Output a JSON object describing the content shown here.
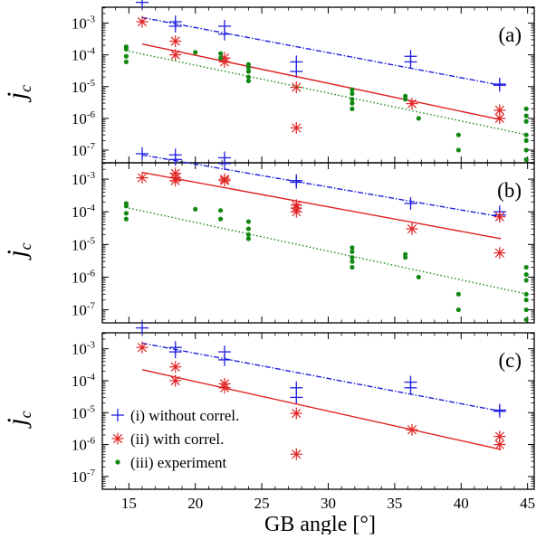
{
  "chart_data": {
    "type": "scatter",
    "xlabel": "GB angle [°]",
    "ylabel_main": "j",
    "ylabel_sub": "c",
    "xlim": [
      13,
      45.5
    ],
    "xticks": [
      15,
      20,
      25,
      30,
      35,
      40,
      45
    ],
    "yscale": "log",
    "ylim_log10": [
      -7.4,
      -2.5
    ],
    "ytick_base": "10",
    "yticks": [
      {
        "value": 0.001,
        "exp": "-3"
      },
      {
        "value": 0.0001,
        "exp": "-4"
      },
      {
        "value": 1e-05,
        "exp": "-5"
      },
      {
        "value": 1e-06,
        "exp": "-6"
      },
      {
        "value": 1e-07,
        "exp": "-7"
      }
    ],
    "legend": {
      "panel": "c",
      "position": "bottom-left",
      "entries": [
        {
          "label": "(i) without correl.",
          "color": "#1f1fdf",
          "marker": "plus"
        },
        {
          "label": "(ii) with correl.",
          "color": "#e02020",
          "marker": "star"
        },
        {
          "label": "(iii) experiment",
          "color": "#118811",
          "marker": "dot"
        }
      ]
    },
    "colors": {
      "series_i": "#1f1fdf",
      "series_ii": "#e02020",
      "series_iii": "#118811"
    },
    "panels": [
      {
        "label": "(a)",
        "series": [
          {
            "name": "(i) without correl.",
            "marker": "plus",
            "color": "#1f1fdf",
            "points": [
              [
                16,
                0.0045
              ],
              [
                18.5,
                0.0011
              ],
              [
                18.5,
                0.0008
              ],
              [
                22.2,
                0.0008
              ],
              [
                22.2,
                0.00045
              ],
              [
                27.6,
                6e-05
              ],
              [
                27.6,
                3e-05
              ],
              [
                36.2,
                9e-05
              ],
              [
                36.2,
                6e-05
              ],
              [
                42.9,
                1.1e-05
              ],
              [
                42.9,
                1.2e-05
              ]
            ],
            "fit": [
              [
                16,
                0.0015
              ],
              [
                43,
                1.1e-05
              ]
            ],
            "fit_style": "dash-dot"
          },
          {
            "name": "(ii) with correl.",
            "marker": "star",
            "color": "#e02020",
            "points": [
              [
                16,
                0.0011
              ],
              [
                18.5,
                0.00027
              ],
              [
                18.5,
                0.0001
              ],
              [
                22.2,
                8e-05
              ],
              [
                22.2,
                6e-05
              ],
              [
                27.6,
                9.5e-06
              ],
              [
                27.6,
                5e-07
              ],
              [
                36.3,
                2.9e-06
              ],
              [
                42.9,
                1.8e-06
              ],
              [
                42.9,
                1e-06
              ]
            ],
            "fit": [
              [
                16,
                0.00022
              ],
              [
                43,
                9e-07
              ]
            ],
            "fit_style": "solid"
          },
          {
            "name": "(iii) experiment",
            "marker": "dot",
            "color": "#118811",
            "points": [
              [
                14.8,
                0.00018
              ],
              [
                14.8,
                0.00015
              ],
              [
                14.8,
                9e-05
              ],
              [
                14.8,
                6e-05
              ],
              [
                20,
                0.00012
              ],
              [
                21.9,
                0.00011
              ],
              [
                21.9,
                8e-05
              ],
              [
                24,
                5e-05
              ],
              [
                24,
                4e-05
              ],
              [
                24,
                3e-05
              ],
              [
                24,
                2e-05
              ],
              [
                24,
                1.5e-05
              ],
              [
                31.8,
                8e-06
              ],
              [
                31.8,
                6e-06
              ],
              [
                31.8,
                4e-06
              ],
              [
                31.8,
                3e-06
              ],
              [
                31.8,
                2e-06
              ],
              [
                35.8,
                5e-06
              ],
              [
                35.8,
                4e-06
              ],
              [
                36.8,
                1e-06
              ],
              [
                39.8,
                3e-07
              ],
              [
                39.8,
                1e-07
              ],
              [
                44.9,
                2e-06
              ],
              [
                44.9,
                1.2e-06
              ],
              [
                44.9,
                8e-07
              ],
              [
                44.9,
                3e-07
              ],
              [
                44.9,
                2e-07
              ],
              [
                44.9,
                1e-07
              ],
              [
                44.9,
                5e-08
              ]
            ],
            "fit": [
              [
                15,
                0.00013
              ],
              [
                45,
                3e-07
              ]
            ],
            "fit_style": "dotted"
          }
        ]
      },
      {
        "label": "(b)",
        "series": [
          {
            "name": "(i) without correl.",
            "marker": "plus",
            "color": "#1f1fdf",
            "points": [
              [
                16,
                0.006
              ],
              [
                18.5,
                0.0055
              ],
              [
                18.5,
                0.004
              ],
              [
                22.2,
                0.0045
              ],
              [
                22.2,
                0.003
              ],
              [
                27.6,
                0.0009
              ],
              [
                27.6,
                0.0008
              ],
              [
                36.2,
                0.00018
              ],
              [
                42.9,
                0.0001
              ],
              [
                42.9,
                8e-05
              ]
            ],
            "fit": [
              [
                16,
                0.0055
              ],
              [
                43,
                7e-05
              ]
            ],
            "fit_style": "dash-dot"
          },
          {
            "name": "(ii) with correl.",
            "marker": "star",
            "color": "#e02020",
            "points": [
              [
                16,
                0.0011
              ],
              [
                18.5,
                0.0015
              ],
              [
                18.5,
                0.0011
              ],
              [
                18.5,
                0.0009
              ],
              [
                22.2,
                0.001
              ],
              [
                22.2,
                0.0009
              ],
              [
                27.6,
                0.00016
              ],
              [
                27.6,
                0.00013
              ],
              [
                27.6,
                0.0001
              ],
              [
                36.3,
                3e-05
              ],
              [
                42.9,
                7e-05
              ],
              [
                42.9,
                5.5e-06
              ]
            ],
            "fit": [
              [
                16,
                0.0016
              ],
              [
                43,
                1.5e-05
              ]
            ],
            "fit_style": "solid"
          },
          {
            "name": "(iii) experiment",
            "marker": "dot",
            "color": "#118811",
            "points": [
              [
                14.8,
                0.00018
              ],
              [
                14.8,
                0.00015
              ],
              [
                14.8,
                9e-05
              ],
              [
                14.8,
                6e-05
              ],
              [
                20,
                0.00012
              ],
              [
                21.9,
                0.00011
              ],
              [
                21.9,
                6e-05
              ],
              [
                24,
                5e-05
              ],
              [
                24,
                3e-05
              ],
              [
                24,
                2e-05
              ],
              [
                24,
                1.5e-05
              ],
              [
                31.8,
                8e-06
              ],
              [
                31.8,
                6e-06
              ],
              [
                31.8,
                4e-06
              ],
              [
                31.8,
                3e-06
              ],
              [
                31.8,
                2e-06
              ],
              [
                35.8,
                5e-06
              ],
              [
                35.8,
                4e-06
              ],
              [
                36.8,
                1e-06
              ],
              [
                39.8,
                3e-07
              ],
              [
                39.8,
                1e-07
              ],
              [
                44.9,
                2e-06
              ],
              [
                44.9,
                1.2e-06
              ],
              [
                44.9,
                8e-07
              ],
              [
                44.9,
                3e-07
              ],
              [
                44.9,
                2e-07
              ],
              [
                44.9,
                1e-07
              ],
              [
                44.9,
                5e-08
              ]
            ],
            "fit": [
              [
                15,
                0.00013
              ],
              [
                45,
                3e-07
              ]
            ],
            "fit_style": "dotted"
          }
        ]
      },
      {
        "label": "(c)",
        "series": [
          {
            "name": "(i) without correl.",
            "marker": "plus",
            "color": "#1f1fdf",
            "points": [
              [
                16,
                0.0045
              ],
              [
                18.5,
                0.0011
              ],
              [
                18.5,
                0.0008
              ],
              [
                22.2,
                0.0008
              ],
              [
                22.2,
                0.00045
              ],
              [
                27.6,
                6e-05
              ],
              [
                27.6,
                3e-05
              ],
              [
                36.2,
                9e-05
              ],
              [
                36.2,
                6e-05
              ],
              [
                42.9,
                1.1e-05
              ],
              [
                42.9,
                1.2e-05
              ]
            ],
            "fit": [
              [
                16,
                0.0015
              ],
              [
                43,
                1.1e-05
              ]
            ],
            "fit_style": "dash-dot"
          },
          {
            "name": "(ii) with correl.",
            "marker": "star",
            "color": "#e02020",
            "points": [
              [
                16,
                0.0011
              ],
              [
                18.5,
                0.00027
              ],
              [
                18.5,
                0.0001
              ],
              [
                22.2,
                8e-05
              ],
              [
                22.2,
                6e-05
              ],
              [
                27.6,
                9.5e-06
              ],
              [
                27.6,
                5e-07
              ],
              [
                36.3,
                2.9e-06
              ],
              [
                42.9,
                1.8e-06
              ],
              [
                42.9,
                1e-06
              ]
            ],
            "fit": [
              [
                16,
                0.00022
              ],
              [
                43,
                7e-07
              ]
            ],
            "fit_style": "solid"
          }
        ]
      }
    ]
  }
}
